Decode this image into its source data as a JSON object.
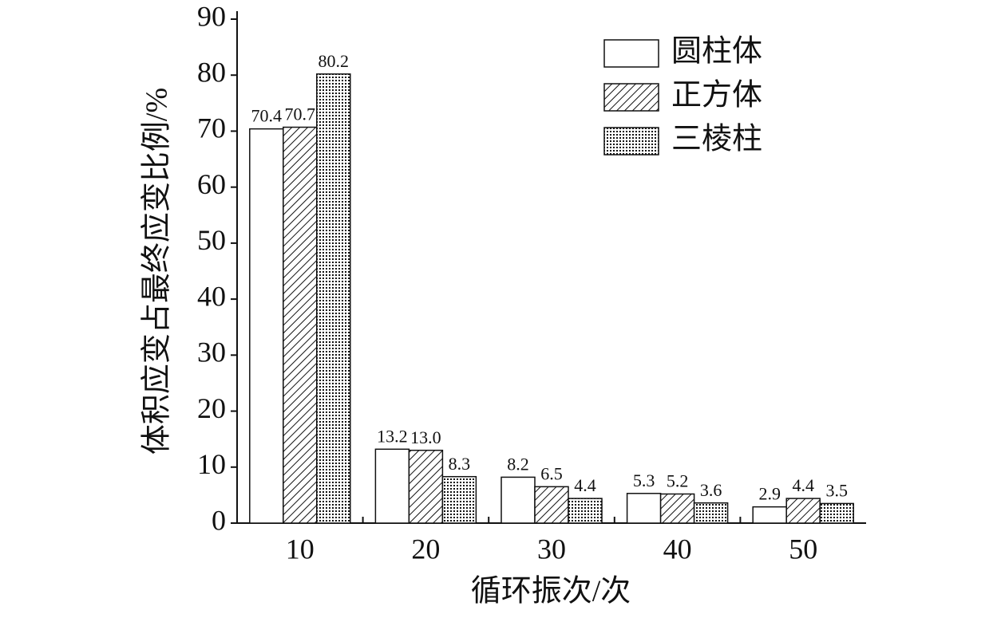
{
  "chart_data": {
    "type": "bar",
    "y_label": "体积应变占最终应变比例/%",
    "x_label": "循环振次/次",
    "categories": [
      "10",
      "20",
      "30",
      "40",
      "50"
    ],
    "series": [
      {
        "name": "圆柱体",
        "color": "#ffffff",
        "pattern": "none",
        "values": [
          70.4,
          13.2,
          8.2,
          5.3,
          2.9
        ]
      },
      {
        "name": "正方体",
        "color": "#ffffff",
        "pattern": "hatch",
        "values": [
          70.7,
          13.0,
          6.5,
          5.2,
          4.4
        ],
        "value_labels": [
          "70.7",
          "13.0",
          "6.5",
          "5.2",
          "4.4"
        ]
      },
      {
        "name": "三棱柱",
        "color": "#ffffff",
        "pattern": "dots",
        "values": [
          80.2,
          8.3,
          4.4,
          3.6,
          3.5
        ]
      }
    ],
    "ylim": [
      0,
      90
    ],
    "yticks": [
      0,
      10,
      20,
      30,
      40,
      50,
      60,
      70,
      80,
      90
    ],
    "legend": "upper right",
    "grid": false
  }
}
